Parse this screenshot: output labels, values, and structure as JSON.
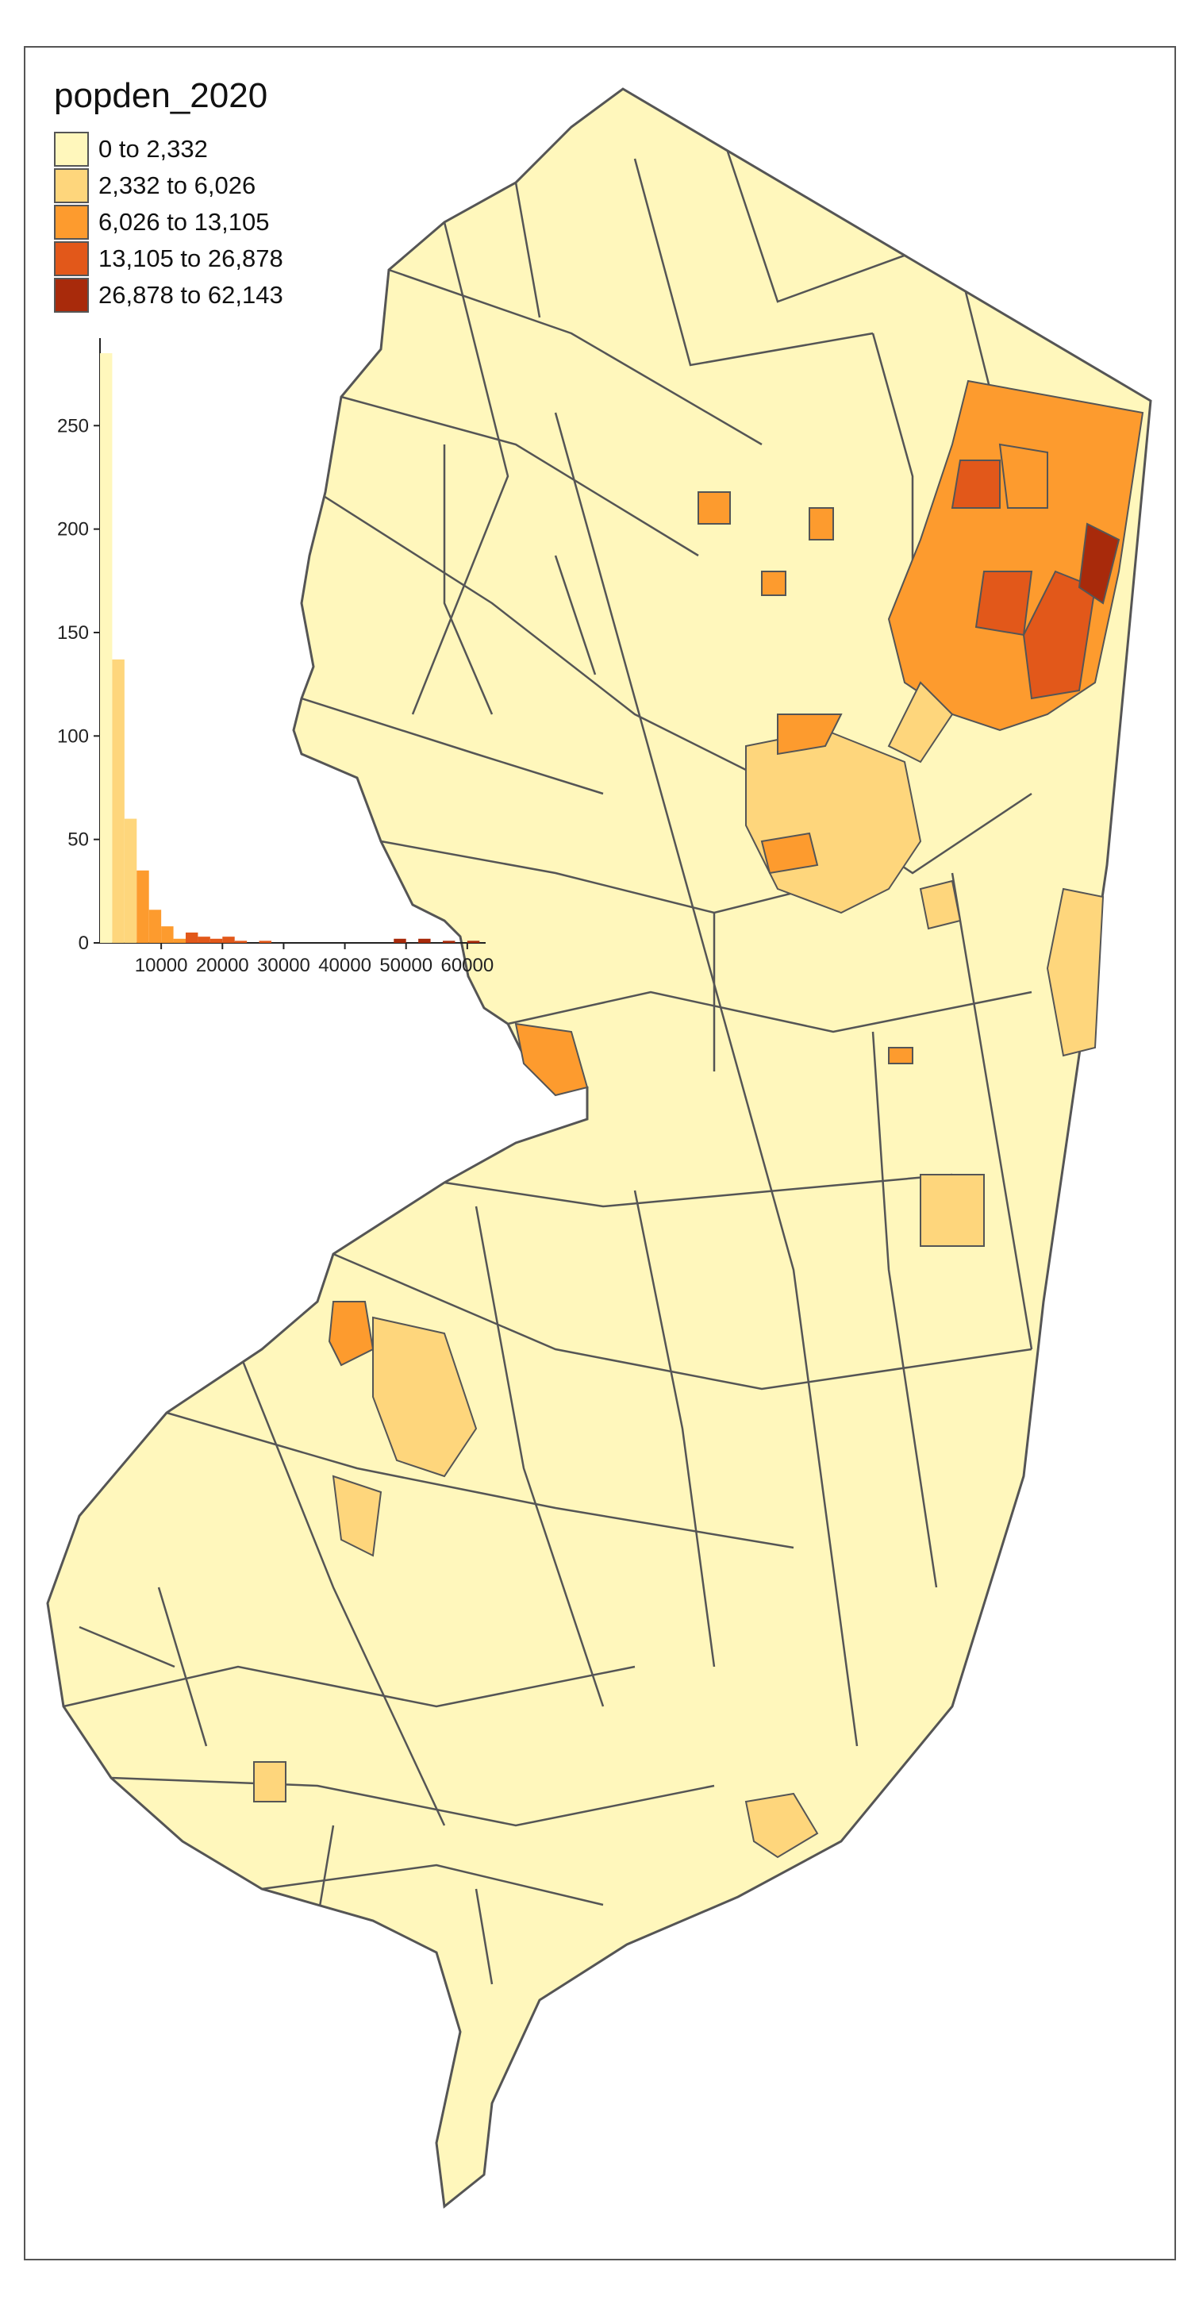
{
  "legend": {
    "title": "popden_2020",
    "classes": [
      {
        "label": "0 to 2,332",
        "color": "#fff7bc"
      },
      {
        "label": "2,332 to 6,026",
        "color": "#fed67c"
      },
      {
        "label": "6,026 to 13,105",
        "color": "#fd9b2e"
      },
      {
        "label": "13,105 to 26,878",
        "color": "#e2581a"
      },
      {
        "label": "26,878 to 62,143",
        "color": "#a82a0b"
      }
    ]
  },
  "chart_data": {
    "type": "bar",
    "bin_width": 2000,
    "x_ticks": [
      10000,
      20000,
      30000,
      40000,
      50000,
      60000
    ],
    "x_tick_labels": [
      "10000",
      "20000",
      "30000",
      "40000",
      "50000",
      "60000"
    ],
    "y_ticks": [
      0,
      50,
      100,
      150,
      200,
      250
    ],
    "y_tick_labels": [
      "0",
      "50",
      "100",
      "150",
      "200",
      "250"
    ],
    "xlim": [
      0,
      63000
    ],
    "ylim": [
      0,
      290
    ],
    "bins": [
      {
        "x": 0,
        "count": 285,
        "color": "#fff7bc"
      },
      {
        "x": 2000,
        "count": 137,
        "color": "#fed67c"
      },
      {
        "x": 4000,
        "count": 60,
        "color": "#fed67c"
      },
      {
        "x": 6000,
        "count": 35,
        "color": "#fd9b2e"
      },
      {
        "x": 8000,
        "count": 16,
        "color": "#fd9b2e"
      },
      {
        "x": 10000,
        "count": 8,
        "color": "#fd9b2e"
      },
      {
        "x": 12000,
        "count": 2,
        "color": "#fd9b2e"
      },
      {
        "x": 14000,
        "count": 5,
        "color": "#e2581a"
      },
      {
        "x": 16000,
        "count": 3,
        "color": "#e2581a"
      },
      {
        "x": 18000,
        "count": 2,
        "color": "#e2581a"
      },
      {
        "x": 20000,
        "count": 3,
        "color": "#e2581a"
      },
      {
        "x": 22000,
        "count": 1,
        "color": "#e2581a"
      },
      {
        "x": 26000,
        "count": 1,
        "color": "#e2581a"
      },
      {
        "x": 48000,
        "count": 2,
        "color": "#a82a0b"
      },
      {
        "x": 52000,
        "count": 2,
        "color": "#a82a0b"
      },
      {
        "x": 56000,
        "count": 1,
        "color": "#a82a0b"
      },
      {
        "x": 60000,
        "count": 1,
        "color": "#a82a0b"
      }
    ]
  }
}
